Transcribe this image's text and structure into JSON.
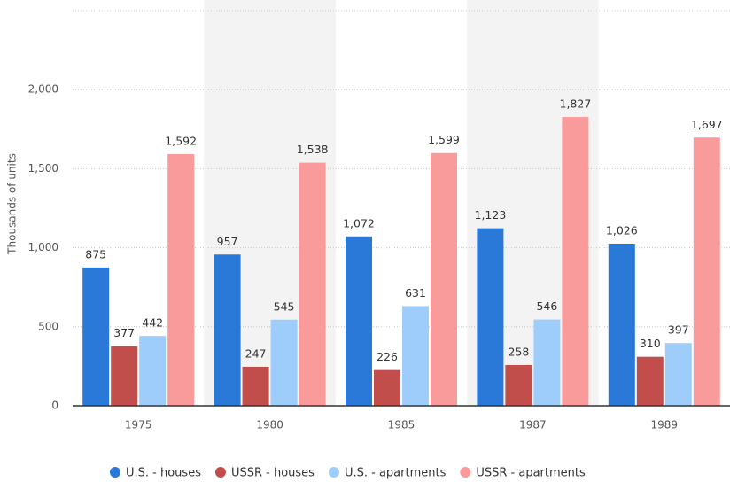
{
  "chart_data": {
    "type": "bar",
    "y_axis_label": "Thousands of units",
    "categories": [
      "1975",
      "1980",
      "1985",
      "1987",
      "1989"
    ],
    "series": [
      {
        "name": "U.S. - houses",
        "color": "#2a78d8",
        "values": [
          875,
          957,
          1072,
          1123,
          1026
        ],
        "value_labels": [
          "875",
          "957",
          "1,072",
          "1,123",
          "1,026"
        ]
      },
      {
        "name": "USSR - houses",
        "color": "#c24e4b",
        "values": [
          377,
          247,
          226,
          258,
          310
        ],
        "value_labels": [
          "377",
          "247",
          "226",
          "258",
          "310"
        ]
      },
      {
        "name": "U.S. - apartments",
        "color": "#9fcdfb",
        "values": [
          442,
          545,
          631,
          546,
          397
        ],
        "value_labels": [
          "442",
          "545",
          "631",
          "546",
          "397"
        ]
      },
      {
        "name": "USSR - apartments",
        "color": "#f99b9b",
        "values": [
          1592,
          1538,
          1599,
          1827,
          1697
        ],
        "value_labels": [
          "1,592",
          "1,538",
          "1,599",
          "1,827",
          "1,697"
        ]
      }
    ],
    "ylim": [
      0,
      2500
    ],
    "yticks": [
      0,
      500,
      {
        "value": 1000,
        "label": "1,000"
      },
      {
        "value": 1500,
        "label": "1,500"
      },
      {
        "value": 2000,
        "label": "2,000"
      }
    ],
    "grid": true
  }
}
